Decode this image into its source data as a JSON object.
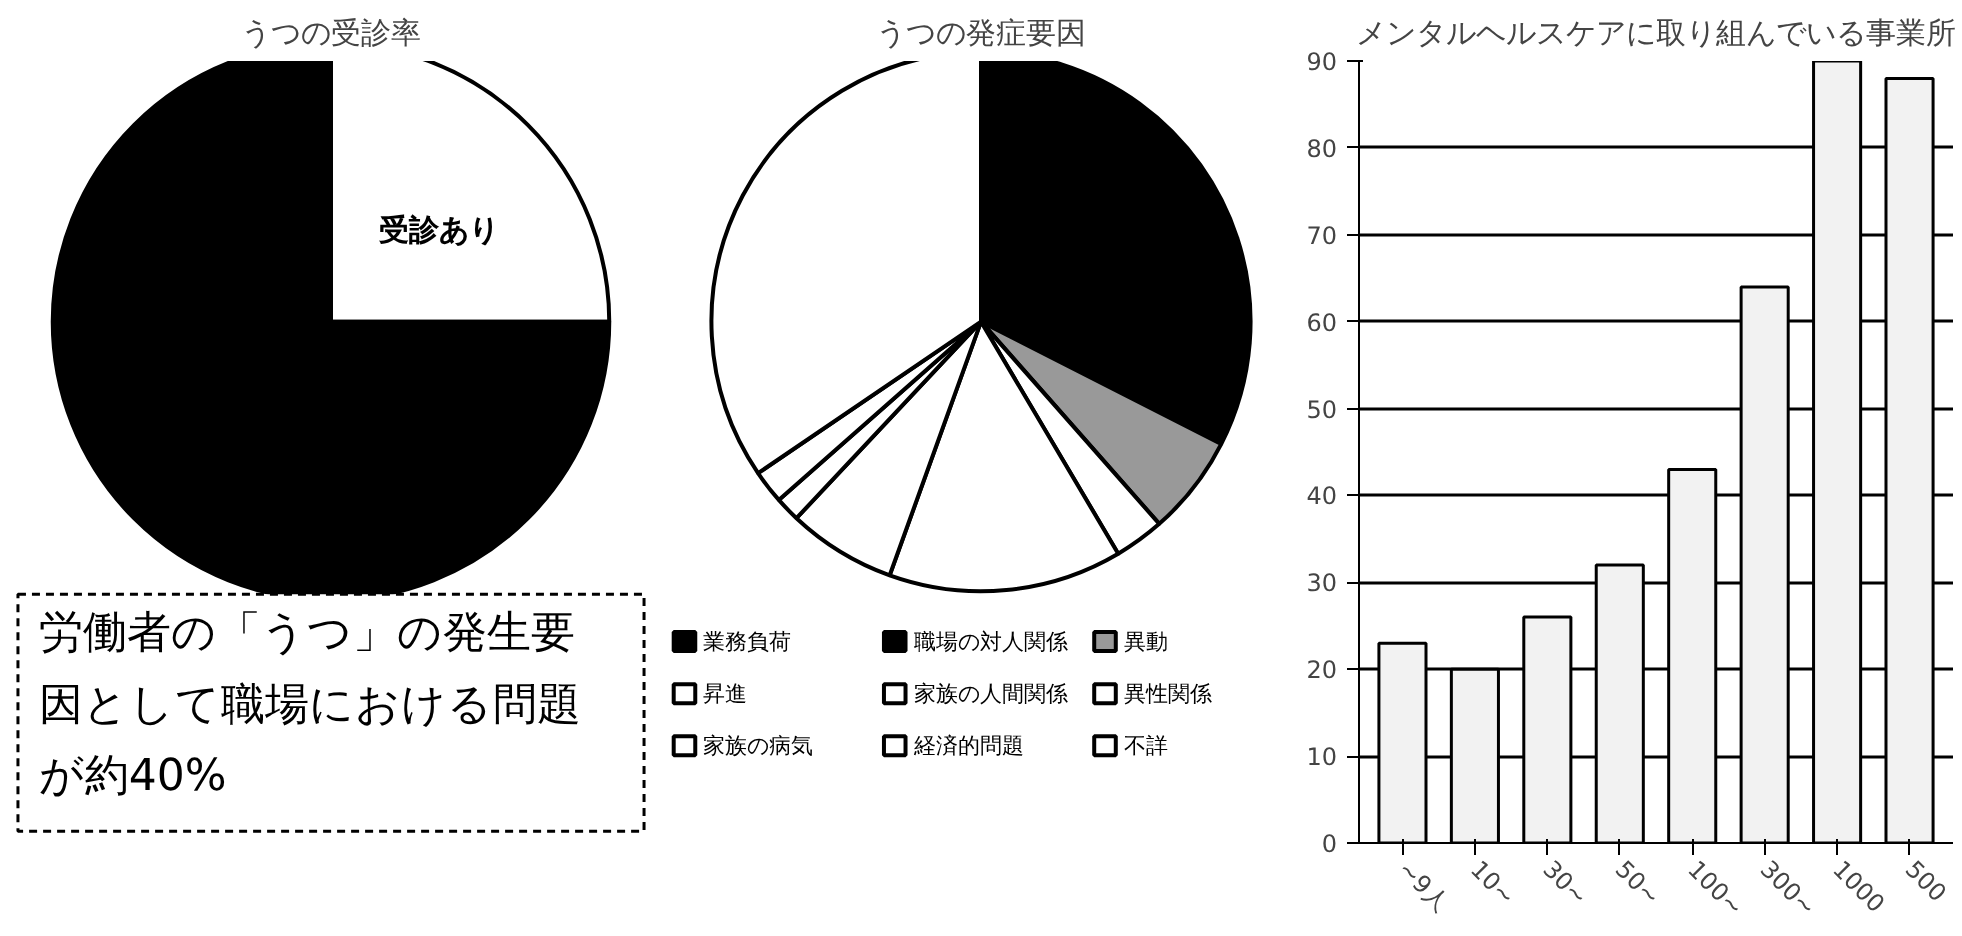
{
  "chart_data": [
    {
      "type": "pie",
      "title": "うつの受診率",
      "categories": [
        "受診あり",
        null
      ],
      "values": [
        25,
        75
      ],
      "colors": [
        "#ffffff",
        "#000000"
      ],
      "annotations": [
        "労働者の「うつ」の発生要因として職場における問題が約40%"
      ]
    },
    {
      "type": "pie",
      "title": "うつの発症要因",
      "categories": [
        "業務負荷",
        "職場の対人関係",
        "異動",
        "昇進",
        "家族の人間関係",
        "異性関係",
        "家族の病気",
        "経済的問題",
        "不詳"
      ],
      "values": [
        20,
        12.5,
        6,
        3,
        14,
        6.5,
        1.5,
        2,
        34.5
      ],
      "colors": [
        "#000000",
        "#000000",
        "#999999",
        "#ffffff",
        "#ffffff",
        "#ffffff",
        "#ffffff",
        "#ffffff",
        "#ffffff"
      ],
      "legend": "bottom"
    },
    {
      "type": "bar",
      "title": "メンタルヘルスケアに取り組んでいる事業所",
      "categories": [
        "~9人",
        "10~",
        "30~",
        "50~",
        "100~",
        "300~",
        "1000",
        "500"
      ],
      "values": [
        23,
        20,
        26,
        32,
        43,
        64,
        90,
        88
      ],
      "color": "#f2f2f2",
      "ylim": [
        0,
        90
      ],
      "yticks": [
        0,
        10,
        20,
        30,
        40,
        50,
        60,
        70,
        80,
        90
      ],
      "grid": "y"
    }
  ]
}
